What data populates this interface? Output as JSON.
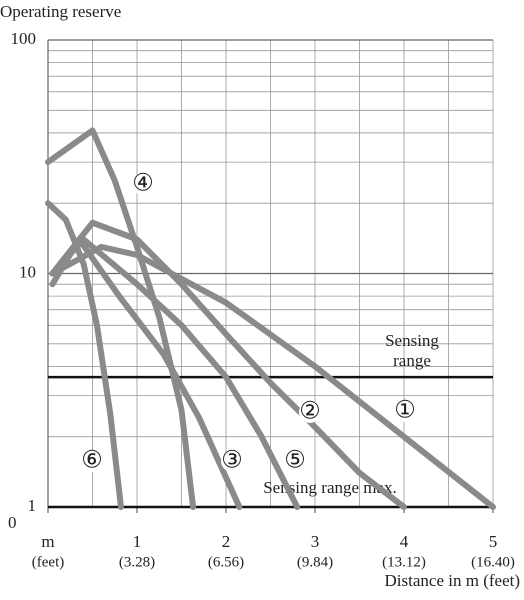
{
  "chart_data": {
    "type": "line",
    "y_axis_label": "Operating reserve",
    "x_axis_label": "Distance in m (feet)",
    "log_y": true,
    "ylim": [
      1,
      100
    ],
    "yticks": [
      100,
      10,
      1
    ],
    "origin_label": "0",
    "xlim": [
      0,
      5
    ],
    "xticks": [
      {
        "value": 0,
        "label": "m"
      },
      1,
      2,
      3,
      4,
      5
    ],
    "xtick_sublabels": [
      "(feet)",
      "(3.28)",
      "(6.56)",
      "(9.84)",
      "(13.12)",
      "(16.40)"
    ],
    "xgrid": [
      0,
      0.5,
      1,
      1.5,
      2,
      2.5,
      3,
      3.5,
      4,
      4.5,
      5
    ],
    "ygrid": [
      2,
      3,
      4,
      5,
      6,
      7,
      8,
      9,
      20,
      30,
      40,
      50,
      60,
      70,
      80,
      90
    ],
    "reference_lines": [
      {
        "value": 3.6,
        "label": [
          "Sensing",
          "range"
        ]
      },
      {
        "value": 1,
        "label": [
          "Sensing range max."
        ]
      }
    ],
    "color": "#8a8a8a",
    "series": [
      {
        "name": "①",
        "x": [
          0.05,
          0.6,
          1,
          2,
          3,
          4,
          5
        ],
        "values": [
          10,
          13,
          12,
          7.5,
          4,
          2,
          1
        ]
      },
      {
        "name": "②",
        "x": [
          0.05,
          0.5,
          1,
          1.5,
          2,
          2.5,
          3,
          3.5,
          4
        ],
        "values": [
          10,
          16.5,
          14,
          9,
          5.5,
          3.4,
          2.2,
          1.4,
          1
        ]
      },
      {
        "name": "③",
        "x": [
          0.05,
          0.35,
          0.8,
          1.3,
          1.7,
          2.15
        ],
        "values": [
          9,
          14,
          8,
          4.5,
          2.4,
          1
        ]
      },
      {
        "name": "④",
        "x": [
          0,
          0.5,
          0.75,
          1,
          1.25,
          1.5,
          1.63
        ],
        "values": [
          30,
          41,
          25,
          13,
          6.5,
          2.6,
          1
        ]
      },
      {
        "name": "⑤",
        "x": [
          0.05,
          0.4,
          1,
          1.5,
          2,
          2.4,
          2.8
        ],
        "values": [
          10,
          14,
          9,
          6,
          3.6,
          2,
          1
        ]
      },
      {
        "name": "⑥",
        "x": [
          0,
          0.2,
          0.4,
          0.55,
          0.7,
          0.82
        ],
        "values": [
          20,
          17,
          11,
          6,
          2.5,
          1
        ]
      }
    ]
  }
}
